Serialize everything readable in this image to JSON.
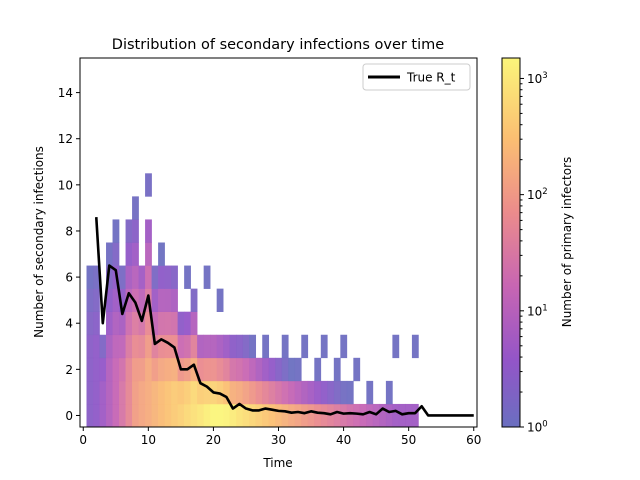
{
  "chart_data": {
    "type": "heatmap",
    "title": "Distribution of secondary infections over time",
    "xlabel": "Time",
    "ylabel": "Number of secondary infections",
    "xlim": [
      -0.5,
      60.5
    ],
    "ylim": [
      -0.5,
      15.5
    ],
    "x_ticks": [
      0,
      10,
      20,
      30,
      40,
      50,
      60
    ],
    "y_ticks": [
      0,
      2,
      4,
      6,
      8,
      10,
      12,
      14
    ],
    "grid": false,
    "colormap": "plasma (alpha 0.6)",
    "colorbar": {
      "label": "Number of primary infectors",
      "scale": "log",
      "range": [
        1,
        1500
      ],
      "ticks": [
        "10^0",
        "10^1",
        "10^2",
        "10^3"
      ]
    },
    "legend": {
      "position": "top-right",
      "entries": [
        "True R_t"
      ]
    },
    "series": [
      {
        "name": "True R_t",
        "color": "#000000",
        "x": [
          2,
          3,
          4,
          5,
          6,
          7,
          8,
          9,
          10,
          11,
          12,
          13,
          14,
          15,
          16,
          17,
          18,
          19,
          20,
          21,
          22,
          23,
          24,
          25,
          26,
          27,
          28,
          29,
          30,
          31,
          32,
          33,
          34,
          35,
          36,
          37,
          38,
          39,
          40,
          41,
          42,
          43,
          44,
          45,
          46,
          47,
          48,
          49,
          50,
          51,
          52,
          53,
          54,
          55,
          56,
          57,
          58,
          59,
          60
        ],
        "values": [
          8.6,
          4.0,
          6.5,
          6.3,
          4.4,
          5.3,
          4.9,
          4.1,
          5.2,
          3.1,
          3.3,
          3.15,
          2.95,
          2.0,
          2.0,
          2.2,
          1.4,
          1.25,
          1.0,
          0.95,
          0.8,
          0.3,
          0.5,
          0.3,
          0.22,
          0.22,
          0.3,
          0.25,
          0.2,
          0.18,
          0.12,
          0.15,
          0.1,
          0.18,
          0.12,
          0.1,
          0.05,
          0.15,
          0.08,
          0.1,
          0.08,
          0.05,
          0.15,
          0.05,
          0.3,
          0.15,
          0.2,
          0.05,
          0.1,
          0.1,
          0.4,
          0.0,
          0.0,
          0.0,
          0.0,
          0.0,
          0.0,
          0.0,
          0.0
        ]
      }
    ]
  }
}
